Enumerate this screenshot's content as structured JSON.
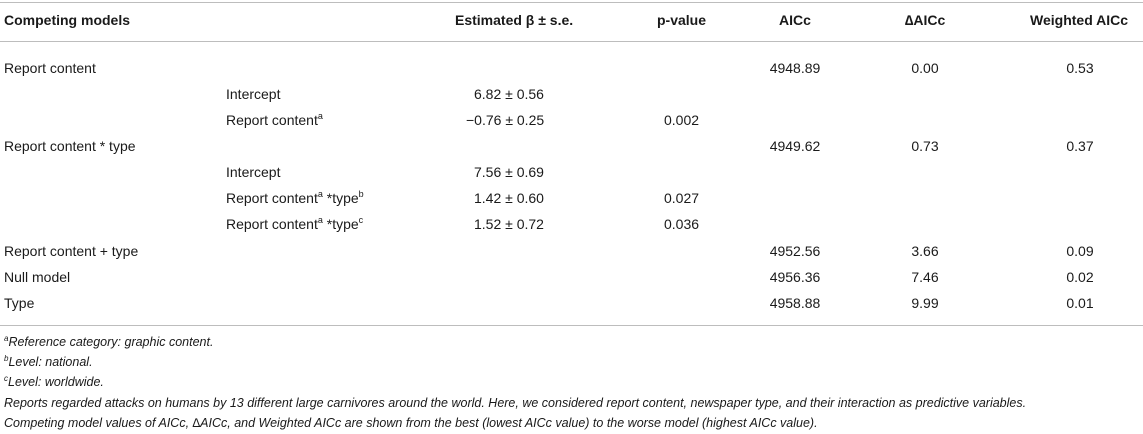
{
  "headers": {
    "model": "Competing models",
    "estimate": "Estimated β ± s.e.",
    "pvalue": "p-value",
    "aicc": "AICc",
    "daicc": "∆AICc",
    "waicc": "Weighted AICc"
  },
  "rows": [
    {
      "model": "Report content",
      "aicc": "4948.89",
      "daicc": "0.00",
      "waicc": "0.53"
    },
    {
      "term": "Intercept",
      "estimate": "6.82 ± 0.56"
    },
    {
      "term": "Report content",
      "estimate": "−0.76 ± 0.25",
      "pvalue": "0.002"
    },
    {
      "model": "Report content * type",
      "aicc": "4949.62",
      "daicc": "0.73",
      "waicc": "0.37"
    },
    {
      "term": "Intercept",
      "estimate": "7.56 ± 0.69"
    },
    {
      "term": "Report content",
      "term2": " *type",
      "estimate": "1.42 ± 0.60",
      "pvalue": "0.027"
    },
    {
      "term": "Report content",
      "term2": " *type",
      "estimate": "1.52 ± 0.72",
      "pvalue": "0.036"
    },
    {
      "model": "Report content + type",
      "aicc": "4952.56",
      "daicc": "3.66",
      "waicc": "0.09"
    },
    {
      "model": "Null model",
      "aicc": "4956.36",
      "daicc": "7.46",
      "waicc": "0.02"
    },
    {
      "model": "Type",
      "aicc": "4958.88",
      "daicc": "9.99",
      "waicc": "0.01"
    }
  ],
  "sups": {
    "a": "a",
    "b": "b",
    "c": "c"
  },
  "footnotes": {
    "a": "Reference category: graphic content.",
    "b": "Level: national.",
    "c": "Level: worldwide.",
    "note1": "Reports regarded attacks on humans by 13 different large carnivores around the world. Here, we considered report content, newspaper type, and their interaction as predictive variables.",
    "note2": "Competing model values of AICc, ∆AICc, and Weighted AICc are shown from the best (lowest AICc value) to the worse model (highest AICc value)."
  }
}
